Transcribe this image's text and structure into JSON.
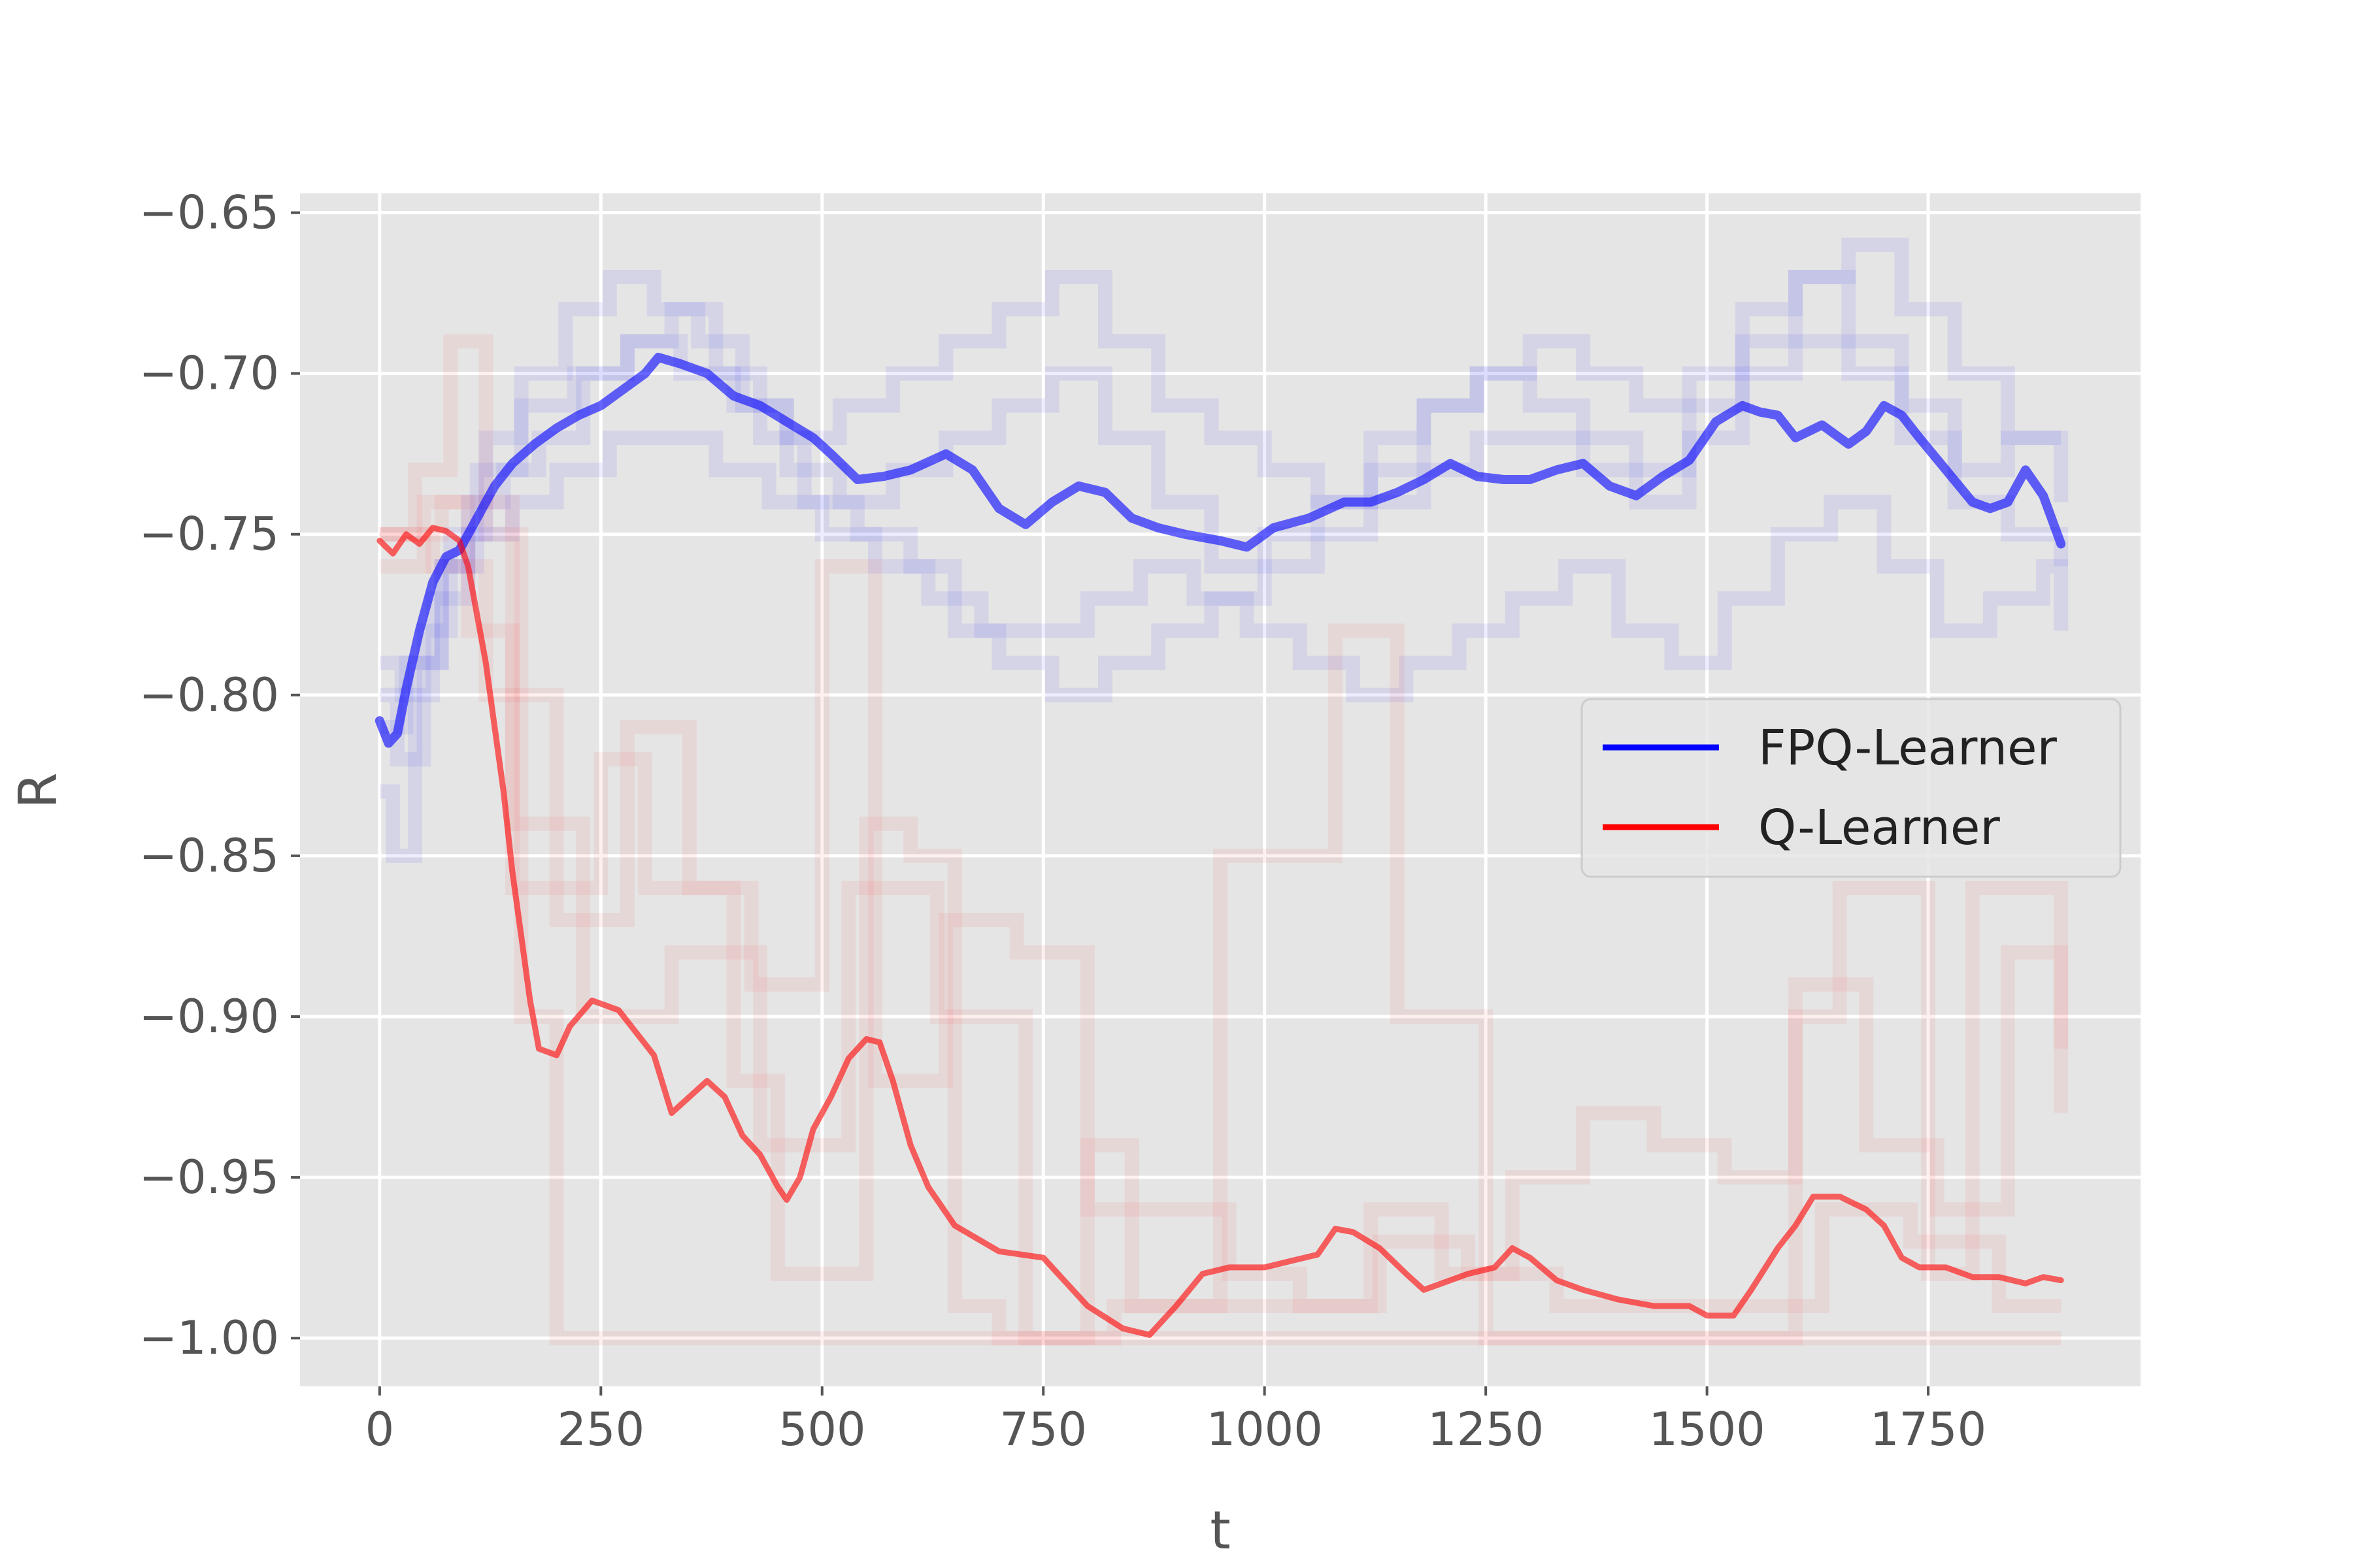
{
  "chart_data": {
    "type": "line",
    "title": "",
    "xlabel": "t",
    "ylabel": "R",
    "xlim": [
      -90,
      1990
    ],
    "ylim": [
      -1.015,
      -0.644
    ],
    "x_ticks": [
      0,
      250,
      500,
      750,
      1000,
      1250,
      1500,
      1750
    ],
    "x_tick_labels": [
      "0",
      "250",
      "500",
      "750",
      "1000",
      "1250",
      "1500",
      "1750"
    ],
    "y_ticks": [
      -0.65,
      -0.7,
      -0.75,
      -0.8,
      -0.85,
      -0.9,
      -0.95,
      -1.0
    ],
    "y_tick_labels": [
      "−0.65",
      "−0.70",
      "−0.75",
      "−0.80",
      "−0.85",
      "−0.90",
      "−0.95",
      "−1.00"
    ],
    "grid": true,
    "legend_position": "right",
    "series": [
      {
        "name": "FPQ-Learner",
        "color": "#0000ff",
        "mean": {
          "x": [
            0,
            10,
            20,
            30,
            45,
            60,
            75,
            90,
            110,
            130,
            150,
            175,
            200,
            225,
            250,
            275,
            300,
            315,
            340,
            370,
            400,
            430,
            460,
            490,
            510,
            540,
            570,
            600,
            640,
            670,
            700,
            730,
            760,
            790,
            820,
            850,
            880,
            910,
            950,
            980,
            1010,
            1050,
            1090,
            1120,
            1150,
            1180,
            1210,
            1240,
            1270,
            1300,
            1330,
            1360,
            1390,
            1420,
            1450,
            1480,
            1510,
            1540,
            1560,
            1580,
            1600,
            1630,
            1660,
            1680,
            1700,
            1720,
            1740,
            1770,
            1800,
            1820,
            1840,
            1860,
            1880,
            1900
          ],
          "y": [
            -0.808,
            -0.815,
            -0.812,
            -0.798,
            -0.78,
            -0.765,
            -0.757,
            -0.755,
            -0.745,
            -0.735,
            -0.728,
            -0.722,
            -0.717,
            -0.713,
            -0.71,
            -0.705,
            -0.7,
            -0.695,
            -0.697,
            -0.7,
            -0.707,
            -0.71,
            -0.715,
            -0.72,
            -0.725,
            -0.733,
            -0.732,
            -0.73,
            -0.725,
            -0.73,
            -0.742,
            -0.747,
            -0.74,
            -0.735,
            -0.737,
            -0.745,
            -0.748,
            -0.75,
            -0.752,
            -0.754,
            -0.748,
            -0.745,
            -0.74,
            -0.74,
            -0.737,
            -0.733,
            -0.728,
            -0.732,
            -0.733,
            -0.733,
            -0.73,
            -0.728,
            -0.735,
            -0.738,
            -0.732,
            -0.727,
            -0.715,
            -0.71,
            -0.712,
            -0.713,
            -0.72,
            -0.716,
            -0.722,
            -0.718,
            -0.71,
            -0.713,
            -0.72,
            -0.73,
            -0.74,
            -0.742,
            -0.74,
            -0.73,
            -0.738,
            -0.753
          ]
        },
        "runs": [
          {
            "x": [
              0,
              15,
              40,
              70,
              100,
              140,
              180,
              230,
              280,
              330,
              380,
              430,
              480,
              540,
              600,
              650,
              700,
              760,
              820,
              880,
              940,
              1000,
              1060,
              1120,
              1180,
              1240,
              1300,
              1360,
              1420,
              1480,
              1540,
              1600,
              1660,
              1720,
              1780,
              1840,
              1900
            ],
            "y": [
              -0.83,
              -0.85,
              -0.79,
              -0.76,
              -0.74,
              -0.73,
              -0.72,
              -0.7,
              -0.69,
              -0.68,
              -0.7,
              -0.72,
              -0.74,
              -0.75,
              -0.76,
              -0.78,
              -0.79,
              -0.8,
              -0.79,
              -0.78,
              -0.77,
              -0.76,
              -0.75,
              -0.74,
              -0.73,
              -0.72,
              -0.72,
              -0.73,
              -0.74,
              -0.72,
              -0.7,
              -0.69,
              -0.7,
              -0.72,
              -0.74,
              -0.75,
              -0.76
            ]
          },
          {
            "x": [
              0,
              20,
              50,
              80,
              120,
              160,
              210,
              260,
              310,
              360,
              410,
              460,
              520,
              580,
              640,
              700,
              760,
              820,
              880,
              940,
              1000,
              1060,
              1120,
              1180,
              1240,
              1300,
              1360,
              1420,
              1480,
              1540,
              1600,
              1660,
              1720,
              1780,
              1840,
              1900
            ],
            "y": [
              -0.8,
              -0.82,
              -0.78,
              -0.75,
              -0.72,
              -0.7,
              -0.68,
              -0.67,
              -0.68,
              -0.69,
              -0.71,
              -0.72,
              -0.71,
              -0.7,
              -0.69,
              -0.68,
              -0.67,
              -0.69,
              -0.71,
              -0.72,
              -0.73,
              -0.74,
              -0.73,
              -0.71,
              -0.7,
              -0.71,
              -0.72,
              -0.73,
              -0.71,
              -0.69,
              -0.67,
              -0.66,
              -0.68,
              -0.7,
              -0.72,
              -0.74
            ]
          },
          {
            "x": [
              0,
              25,
              60,
              100,
              150,
              200,
              260,
              320,
              380,
              440,
              500,
              560,
              620,
              680,
              740,
              800,
              860,
              920,
              980,
              1040,
              1100,
              1160,
              1220,
              1280,
              1340,
              1400,
              1460,
              1520,
              1580,
              1640,
              1700,
              1760,
              1820,
              1880,
              1900
            ],
            "y": [
              -0.79,
              -0.8,
              -0.77,
              -0.75,
              -0.74,
              -0.73,
              -0.72,
              -0.72,
              -0.73,
              -0.74,
              -0.75,
              -0.76,
              -0.77,
              -0.78,
              -0.78,
              -0.77,
              -0.76,
              -0.77,
              -0.78,
              -0.79,
              -0.8,
              -0.79,
              -0.78,
              -0.77,
              -0.76,
              -0.78,
              -0.79,
              -0.77,
              -0.75,
              -0.74,
              -0.76,
              -0.78,
              -0.77,
              -0.76,
              -0.78
            ]
          },
          {
            "x": [
              0,
              30,
              70,
              110,
              160,
              220,
              280,
              340,
              400,
              460,
              520,
              580,
              640,
              700,
              760,
              820,
              880,
              940,
              1000,
              1060,
              1120,
              1180,
              1240,
              1300,
              1360,
              1420,
              1480,
              1540,
              1600,
              1660,
              1720,
              1780,
              1840,
              1900
            ],
            "y": [
              -0.81,
              -0.79,
              -0.76,
              -0.73,
              -0.71,
              -0.7,
              -0.69,
              -0.7,
              -0.71,
              -0.73,
              -0.74,
              -0.73,
              -0.72,
              -0.71,
              -0.7,
              -0.72,
              -0.74,
              -0.76,
              -0.75,
              -0.74,
              -0.72,
              -0.71,
              -0.7,
              -0.69,
              -0.7,
              -0.71,
              -0.7,
              -0.68,
              -0.67,
              -0.69,
              -0.71,
              -0.73,
              -0.72,
              -0.72
            ]
          }
        ]
      },
      {
        "name": "Q-Learner",
        "color": "#ff0000",
        "mean": {
          "x": [
            0,
            15,
            30,
            45,
            60,
            75,
            90,
            100,
            110,
            120,
            130,
            140,
            150,
            160,
            170,
            180,
            200,
            215,
            240,
            270,
            290,
            310,
            330,
            350,
            370,
            390,
            410,
            430,
            450,
            460,
            475,
            490,
            510,
            530,
            550,
            565,
            580,
            600,
            620,
            650,
            700,
            750,
            800,
            840,
            870,
            900,
            930,
            960,
            1000,
            1030,
            1060,
            1080,
            1100,
            1130,
            1160,
            1180,
            1200,
            1230,
            1260,
            1280,
            1300,
            1330,
            1360,
            1400,
            1440,
            1480,
            1500,
            1530,
            1550,
            1580,
            1600,
            1620,
            1650,
            1680,
            1700,
            1720,
            1740,
            1770,
            1800,
            1830,
            1860,
            1880,
            1900
          ],
          "y": [
            -0.752,
            -0.756,
            -0.75,
            -0.753,
            -0.748,
            -0.749,
            -0.752,
            -0.76,
            -0.775,
            -0.79,
            -0.81,
            -0.83,
            -0.855,
            -0.875,
            -0.895,
            -0.91,
            -0.912,
            -0.903,
            -0.895,
            -0.898,
            -0.905,
            -0.912,
            -0.93,
            -0.925,
            -0.92,
            -0.925,
            -0.937,
            -0.943,
            -0.953,
            -0.957,
            -0.95,
            -0.935,
            -0.925,
            -0.913,
            -0.907,
            -0.908,
            -0.92,
            -0.94,
            -0.953,
            -0.965,
            -0.973,
            -0.975,
            -0.99,
            -0.997,
            -0.999,
            -0.99,
            -0.98,
            -0.978,
            -0.978,
            -0.976,
            -0.974,
            -0.966,
            -0.967,
            -0.972,
            -0.98,
            -0.985,
            -0.983,
            -0.98,
            -0.978,
            -0.972,
            -0.975,
            -0.982,
            -0.985,
            -0.988,
            -0.99,
            -0.99,
            -0.993,
            -0.993,
            -0.985,
            -0.972,
            -0.965,
            -0.956,
            -0.956,
            -0.96,
            -0.965,
            -0.975,
            -0.978,
            -0.978,
            -0.981,
            -0.981,
            -0.983,
            -0.981,
            -0.982
          ]
        },
        "runs": [
          {
            "x": [
              0,
              40,
              80,
              120,
              160,
              200,
              300,
              400,
              500,
              600,
              700,
              800,
              900,
              1000,
              1100,
              1200,
              1300,
              1400,
              1500,
              1600,
              1700,
              1800,
              1900
            ],
            "y": [
              -0.75,
              -0.73,
              -0.69,
              -0.75,
              -0.9,
              -1.0,
              -1.0,
              -1.0,
              -1.0,
              -1.0,
              -1.0,
              -1.0,
              -1.0,
              -1.0,
              -1.0,
              -1.0,
              -1.0,
              -1.0,
              -1.0,
              -1.0,
              -1.0,
              -1.0,
              -1.0
            ]
          },
          {
            "x": [
              0,
              50,
              100,
              150,
              250,
              300,
              400,
              450,
              550,
              600,
              650,
              700,
              800,
              850,
              950,
              1000,
              1080,
              1150,
              1250,
              1300,
              1400,
              1500,
              1600,
              1650,
              1750,
              1800,
              1900
            ],
            "y": [
              -0.76,
              -0.74,
              -0.78,
              -0.86,
              -0.82,
              -0.86,
              -0.92,
              -0.98,
              -0.84,
              -0.85,
              -0.99,
              -1.0,
              -0.94,
              -0.99,
              -0.85,
              -0.85,
              -0.78,
              -0.9,
              -1.0,
              -1.0,
              -1.0,
              -1.0,
              -0.9,
              -0.86,
              -0.98,
              -0.86,
              -0.91
            ]
          },
          {
            "x": [
              0,
              60,
              120,
              200,
              280,
              350,
              420,
              500,
              560,
              640,
              720,
              800,
              880,
              960,
              1040,
              1120,
              1200,
              1280,
              1360,
              1440,
              1520,
              1600,
              1680,
              1760,
              1840,
              1900
            ],
            "y": [
              -0.75,
              -0.76,
              -0.8,
              -0.87,
              -0.81,
              -0.86,
              -0.89,
              -0.76,
              -0.92,
              -0.87,
              -0.88,
              -0.96,
              -0.96,
              -0.98,
              -0.99,
              -0.96,
              -0.98,
              -0.95,
              -0.93,
              -0.94,
              -0.95,
              -0.89,
              -0.94,
              -0.96,
              -0.88,
              -0.93
            ]
          },
          {
            "x": [
              0,
              70,
              150,
              230,
              330,
              430,
              530,
              630,
              730,
              830,
              930,
              1030,
              1130,
              1230,
              1330,
              1430,
              1530,
              1630,
              1730,
              1830,
              1900
            ],
            "y": [
              -0.75,
              -0.74,
              -0.84,
              -0.9,
              -0.88,
              -0.94,
              -0.86,
              -0.9,
              -1.0,
              -0.99,
              -0.99,
              -0.99,
              -0.97,
              -0.98,
              -0.99,
              -0.99,
              -0.99,
              -0.96,
              -0.97,
              -0.99,
              -0.99
            ]
          }
        ]
      }
    ]
  }
}
